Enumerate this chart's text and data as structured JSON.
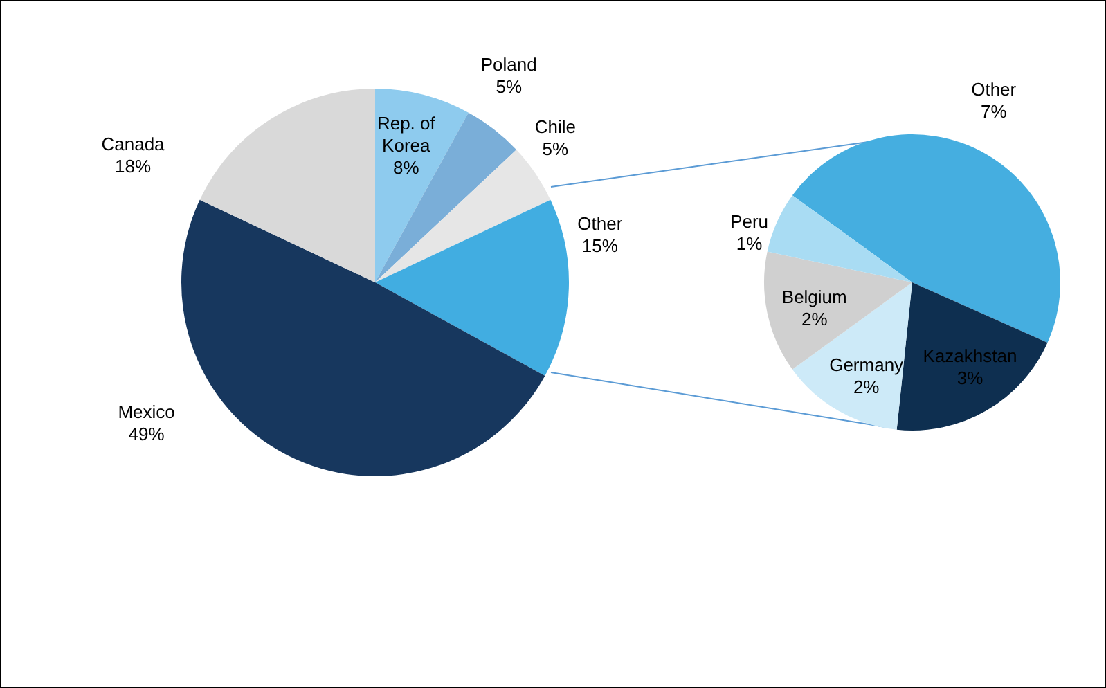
{
  "chart_data": [
    {
      "type": "pie",
      "categories": [
        "Rep. of Korea",
        "Poland",
        "Chile",
        "Other",
        "Mexico",
        "Canada"
      ],
      "values": [
        8,
        5,
        5,
        15,
        49,
        18
      ],
      "colors": [
        "#8ecbee",
        "#7aaed8",
        "#e6e6e6",
        "#41ade1",
        "#17375e",
        "#d9d9d9"
      ],
      "value_labels": [
        "8%",
        "5%",
        "5%",
        "15%",
        "49%",
        "18%"
      ],
      "legend": false
    },
    {
      "type": "pie",
      "categories": [
        "Other",
        "Kazakhstan",
        "Germany",
        "Belgium",
        "Peru"
      ],
      "values": [
        7,
        3,
        2,
        2,
        1
      ],
      "colors": [
        "#45aee0",
        "#0e2f50",
        "#cdeaf8",
        "#d0d0d0",
        "#a9dcf3"
      ],
      "value_labels": [
        "7%",
        "3%",
        "2%",
        "2%",
        "1%"
      ],
      "legend": false
    }
  ]
}
